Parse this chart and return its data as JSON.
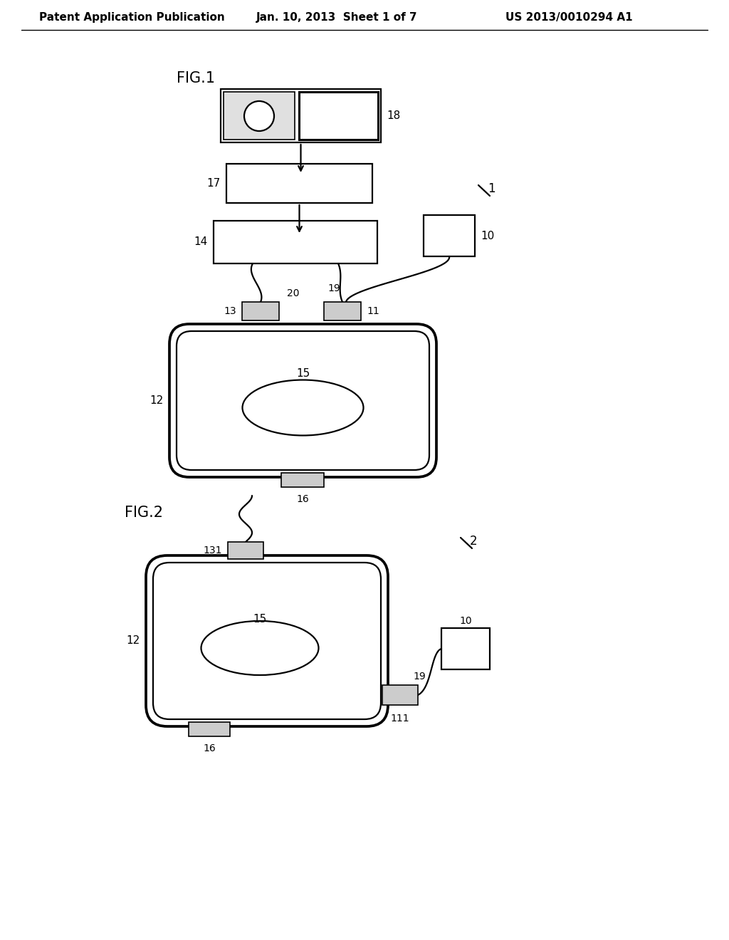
{
  "bg_color": "#ffffff",
  "line_color": "#000000",
  "header_left": "Patent Application Publication",
  "header_mid": "Jan. 10, 2013  Sheet 1 of 7",
  "header_right": "US 2013/0010294 A1"
}
